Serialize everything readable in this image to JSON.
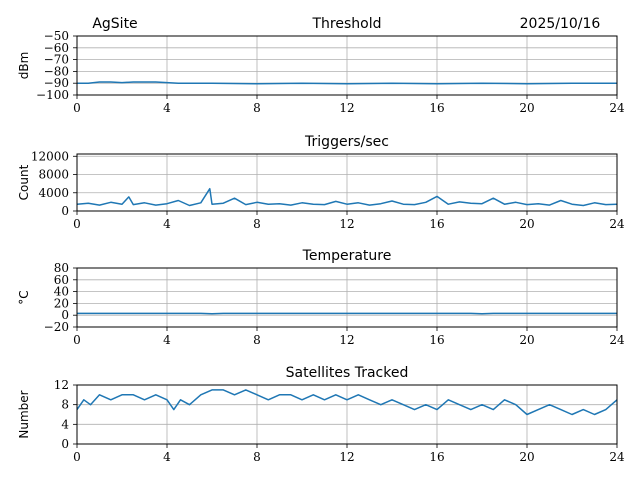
{
  "header": {
    "site": "AgSite",
    "date": "2025/10/16"
  },
  "chart_data": [
    {
      "type": "line",
      "title": "Threshold",
      "xlabel": "",
      "ylabel": "dBm",
      "xlim": [
        0,
        24
      ],
      "ylim": [
        -100,
        -50
      ],
      "xticks": [
        0,
        4,
        8,
        12,
        16,
        20,
        24
      ],
      "yticks": [
        -100,
        -90,
        -80,
        -70,
        -60,
        -50
      ],
      "grid": true,
      "color": "#1f77b4",
      "x": [
        0,
        0.5,
        1,
        1.5,
        2,
        2.5,
        3,
        3.5,
        4,
        4.5,
        5,
        6,
        8,
        10,
        12,
        14,
        16,
        18,
        20,
        22,
        24
      ],
      "y": [
        -90,
        -90,
        -89,
        -89,
        -89.5,
        -89,
        -89,
        -89,
        -89.5,
        -90,
        -90,
        -90,
        -90.5,
        -90,
        -90.5,
        -90,
        -90.5,
        -90,
        -90.5,
        -90,
        -90
      ]
    },
    {
      "type": "line",
      "title": "Triggers/sec",
      "xlabel": "",
      "ylabel": "Count",
      "xlim": [
        0,
        24
      ],
      "ylim": [
        0,
        12500
      ],
      "xticks": [
        0,
        4,
        8,
        12,
        16,
        20,
        24
      ],
      "yticks": [
        0,
        4000,
        8000,
        12000
      ],
      "grid": true,
      "color": "#1f77b4",
      "x": [
        0,
        0.5,
        1,
        1.5,
        2,
        2.3,
        2.5,
        3,
        3.5,
        4,
        4.5,
        5,
        5.5,
        5.9,
        6,
        6.5,
        7,
        7.5,
        8,
        8.5,
        9,
        9.5,
        10,
        10.5,
        11,
        11.5,
        12,
        12.5,
        13,
        13.5,
        14,
        14.5,
        15,
        15.5,
        16,
        16.5,
        17,
        17.5,
        18,
        18.5,
        19,
        19.5,
        20,
        20.5,
        21,
        21.5,
        22,
        22.5,
        23,
        23.5,
        24
      ],
      "y": [
        1500,
        1700,
        1300,
        1900,
        1500,
        3100,
        1400,
        1800,
        1300,
        1600,
        2300,
        1200,
        1800,
        4900,
        1500,
        1700,
        2800,
        1400,
        1900,
        1500,
        1600,
        1300,
        1800,
        1500,
        1400,
        2100,
        1500,
        1800,
        1300,
        1600,
        2200,
        1500,
        1400,
        1900,
        3200,
        1500,
        2000,
        1700,
        1600,
        2800,
        1500,
        1900,
        1400,
        1600,
        1300,
        2300,
        1500,
        1200,
        1800,
        1400,
        1500
      ]
    },
    {
      "type": "line",
      "title": "Temperature",
      "xlabel": "",
      "ylabel": "°C",
      "xlim": [
        0,
        24
      ],
      "ylim": [
        -20,
        80
      ],
      "xticks": [
        0,
        4,
        8,
        12,
        16,
        20,
        24
      ],
      "yticks": [
        -20,
        0,
        20,
        40,
        60,
        80
      ],
      "grid": true,
      "color": "#1f77b4",
      "x": [
        0,
        4,
        5.5,
        6,
        6.5,
        8,
        12,
        16,
        17.5,
        18,
        18.5,
        20,
        24
      ],
      "y": [
        3,
        3,
        3,
        2.5,
        3,
        3,
        3,
        3,
        3,
        2.5,
        3,
        3,
        3
      ]
    },
    {
      "type": "line",
      "title": "Satellites Tracked",
      "xlabel": "",
      "ylabel": "Number",
      "xlim": [
        0,
        24
      ],
      "ylim": [
        0,
        12
      ],
      "xticks": [
        0,
        4,
        8,
        12,
        16,
        20,
        24
      ],
      "yticks": [
        0,
        4,
        8,
        12
      ],
      "grid": true,
      "color": "#1f77b4",
      "x": [
        0,
        0.3,
        0.6,
        1,
        1.5,
        2,
        2.5,
        3,
        3.5,
        4,
        4.3,
        4.6,
        5,
        5.5,
        6,
        6.5,
        7,
        7.5,
        8,
        8.5,
        9,
        9.5,
        10,
        10.5,
        11,
        11.5,
        12,
        12.5,
        13,
        13.5,
        14,
        14.5,
        15,
        15.5,
        16,
        16.5,
        17,
        17.5,
        18,
        18.5,
        19,
        19.5,
        20,
        20.5,
        21,
        21.5,
        22,
        22.5,
        23,
        23.5,
        24
      ],
      "y": [
        7,
        9,
        8,
        10,
        9,
        10,
        10,
        9,
        10,
        9,
        7,
        9,
        8,
        10,
        11,
        11,
        10,
        11,
        10,
        9,
        10,
        10,
        9,
        10,
        9,
        10,
        9,
        10,
        9,
        8,
        9,
        8,
        7,
        8,
        7,
        9,
        8,
        7,
        8,
        7,
        9,
        8,
        6,
        7,
        8,
        7,
        6,
        7,
        6,
        7,
        9
      ]
    }
  ]
}
